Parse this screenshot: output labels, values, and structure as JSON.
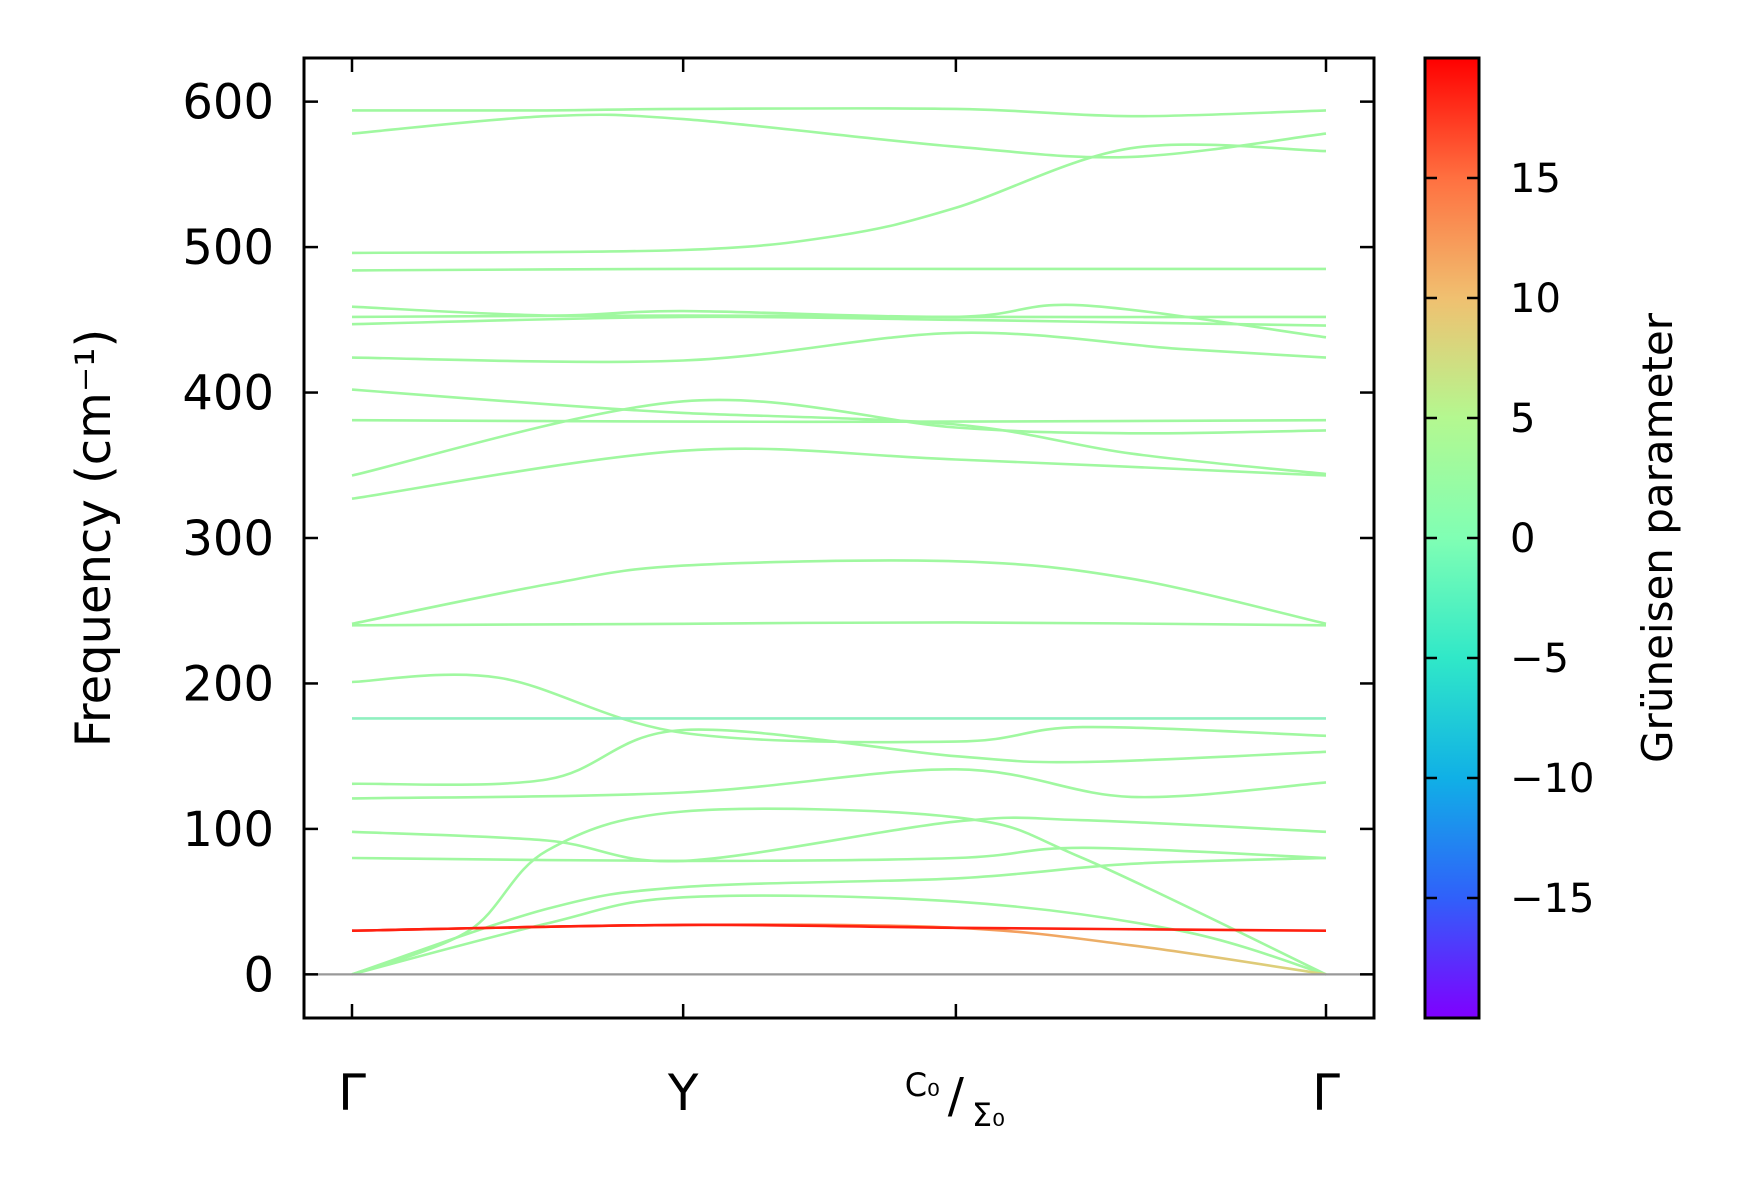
{
  "chart_data": {
    "type": "line",
    "ylabel": "Frequency (cm⁻¹)",
    "ylim": [
      -30,
      630
    ],
    "yticks": [
      0,
      100,
      200,
      300,
      400,
      500,
      600
    ],
    "xpoints": [
      {
        "label": "Γ",
        "x": 0
      },
      {
        "label": "Y",
        "x": 0.34
      },
      {
        "label": "C₀/Σ₀",
        "x": 0.62
      },
      {
        "label": "Γ",
        "x": 1.0
      }
    ],
    "colorbar": {
      "label": "Grüneisen parameter",
      "range": [
        -20,
        20
      ],
      "ticks": [
        15,
        10,
        5,
        0,
        -5,
        -10,
        -15
      ],
      "tick_labels": [
        "15",
        "10",
        "5",
        "0",
        "−5",
        "−10",
        "−15"
      ],
      "colors": [
        "#7f00ff",
        "#3060fa",
        "#10b0e6",
        "#30e8c8",
        "#80ffb4",
        "#b4f890",
        "#f0c070",
        "#ff7040",
        "#ff0000"
      ]
    },
    "zero_line_color": "#999999",
    "series": [
      {
        "values": [
          [
            0,
            594
          ],
          [
            0.2,
            594
          ],
          [
            0.34,
            595
          ],
          [
            0.62,
            595
          ],
          [
            0.8,
            590
          ],
          [
            1.0,
            594
          ]
        ],
        "color": "#a0f8a0"
      },
      {
        "values": [
          [
            0,
            578
          ],
          [
            0.2,
            590
          ],
          [
            0.34,
            588
          ],
          [
            0.62,
            569
          ],
          [
            0.8,
            562
          ],
          [
            1.0,
            578
          ]
        ],
        "color": "#a0f8a0"
      },
      {
        "values": [
          [
            0,
            496
          ],
          [
            0.34,
            498
          ],
          [
            0.5,
            508
          ],
          [
            0.62,
            527
          ],
          [
            0.8,
            568
          ],
          [
            1.0,
            566
          ]
        ],
        "color": "#a0f8a0"
      },
      {
        "values": [
          [
            0,
            484
          ],
          [
            0.34,
            485
          ],
          [
            0.62,
            485
          ],
          [
            1.0,
            485
          ]
        ],
        "color": "#a0f8a0"
      },
      {
        "values": [
          [
            0,
            459
          ],
          [
            0.2,
            453
          ],
          [
            0.34,
            456
          ],
          [
            0.62,
            452
          ],
          [
            0.75,
            460
          ],
          [
            1.0,
            438
          ]
        ],
        "color": "#a0f8a0"
      },
      {
        "values": [
          [
            0,
            452
          ],
          [
            0.34,
            453
          ],
          [
            0.62,
            452
          ],
          [
            1.0,
            452
          ]
        ],
        "color": "#a0f8a0"
      },
      {
        "values": [
          [
            0,
            447
          ],
          [
            0.34,
            452
          ],
          [
            0.62,
            450
          ],
          [
            1.0,
            446
          ]
        ],
        "color": "#a0f8a0"
      },
      {
        "values": [
          [
            0,
            424
          ],
          [
            0.34,
            422
          ],
          [
            0.62,
            441
          ],
          [
            0.85,
            430
          ],
          [
            1.0,
            424
          ]
        ],
        "color": "#a0f8a0"
      },
      {
        "values": [
          [
            0,
            402
          ],
          [
            0.2,
            392
          ],
          [
            0.34,
            386
          ],
          [
            0.62,
            378
          ],
          [
            0.8,
            358
          ],
          [
            1.0,
            344
          ]
        ],
        "color": "#a0f8a0"
      },
      {
        "values": [
          [
            0,
            381
          ],
          [
            0.34,
            380
          ],
          [
            0.62,
            380
          ],
          [
            1.0,
            381
          ]
        ],
        "color": "#a0f8a0"
      },
      {
        "values": [
          [
            0,
            343
          ],
          [
            0.34,
            394
          ],
          [
            0.62,
            376
          ],
          [
            0.8,
            372
          ],
          [
            1.0,
            374
          ]
        ],
        "color": "#a0f8a0"
      },
      {
        "values": [
          [
            0,
            327
          ],
          [
            0.34,
            360
          ],
          [
            0.62,
            354
          ],
          [
            1.0,
            343
          ]
        ],
        "color": "#a0f8a0"
      },
      {
        "values": [
          [
            0,
            241
          ],
          [
            0.2,
            268
          ],
          [
            0.34,
            281
          ],
          [
            0.62,
            284
          ],
          [
            0.8,
            272
          ],
          [
            1.0,
            241
          ]
        ],
        "color": "#a0f8a0"
      },
      {
        "values": [
          [
            0,
            240
          ],
          [
            0.34,
            241
          ],
          [
            0.62,
            242
          ],
          [
            1.0,
            240
          ]
        ],
        "color": "#a0f8a0"
      },
      {
        "values": [
          [
            0,
            201
          ],
          [
            0.15,
            204
          ],
          [
            0.34,
            166
          ],
          [
            0.62,
            160
          ],
          [
            0.75,
            170
          ],
          [
            1.0,
            164
          ]
        ],
        "color": "#a0f8a0"
      },
      {
        "values": [
          [
            0,
            176
          ],
          [
            0.34,
            176
          ],
          [
            0.62,
            176
          ],
          [
            1.0,
            176
          ]
        ],
        "color": "#90f0c0"
      },
      {
        "values": [
          [
            0,
            131
          ],
          [
            0.2,
            134
          ],
          [
            0.34,
            168
          ],
          [
            0.62,
            150
          ],
          [
            0.75,
            146
          ],
          [
            1.0,
            153
          ]
        ],
        "color": "#a0f8a0"
      },
      {
        "values": [
          [
            0,
            121
          ],
          [
            0.34,
            125
          ],
          [
            0.62,
            141
          ],
          [
            0.8,
            122
          ],
          [
            1.0,
            132
          ]
        ],
        "color": "#a0f8a0"
      },
      {
        "values": [
          [
            0,
            98
          ],
          [
            0.2,
            92
          ],
          [
            0.34,
            78
          ],
          [
            0.62,
            105
          ],
          [
            0.75,
            106
          ],
          [
            1.0,
            98
          ]
        ],
        "color": "#a0f8a0"
      },
      {
        "values": [
          [
            0,
            80
          ],
          [
            0.34,
            78
          ],
          [
            0.62,
            80
          ],
          [
            0.75,
            87
          ],
          [
            1.0,
            80
          ]
        ],
        "color": "#a0f8a0"
      },
      {
        "values": [
          [
            0,
            0
          ],
          [
            0.12,
            30
          ],
          [
            0.2,
            85
          ],
          [
            0.34,
            112
          ],
          [
            0.62,
            108
          ],
          [
            0.75,
            80
          ],
          [
            1.0,
            0
          ]
        ],
        "color": "#a0f8a0"
      },
      {
        "values": [
          [
            0,
            0
          ],
          [
            0.2,
            45
          ],
          [
            0.34,
            60
          ],
          [
            0.62,
            66
          ],
          [
            0.8,
            76
          ],
          [
            1.0,
            80
          ]
        ],
        "color": "#a0f8a0"
      },
      {
        "values": [
          [
            0,
            0
          ],
          [
            0.2,
            35
          ],
          [
            0.34,
            53
          ],
          [
            0.62,
            50
          ],
          [
            0.85,
            30
          ],
          [
            1.0,
            0
          ]
        ],
        "color": "#a0f8a0"
      },
      {
        "values": [
          [
            0,
            30
          ],
          [
            0.34,
            34
          ],
          [
            0.62,
            32
          ],
          [
            0.8,
            20
          ],
          [
            1.0,
            0
          ]
        ],
        "color": "#ff2010",
        "color_end": "#d8d880"
      },
      {
        "values": [
          [
            0,
            30
          ],
          [
            0.34,
            34
          ],
          [
            0.62,
            32
          ],
          [
            1.0,
            30
          ]
        ],
        "color": "#ff2010"
      }
    ]
  }
}
